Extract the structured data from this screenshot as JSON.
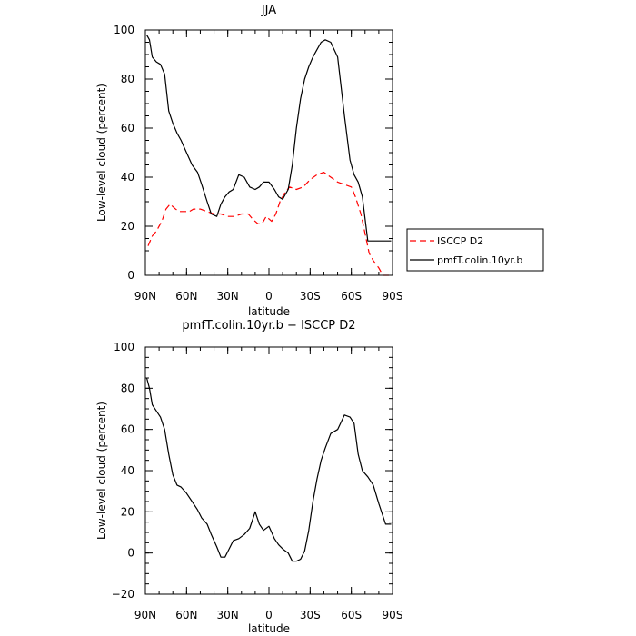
{
  "chart_data": [
    {
      "type": "line",
      "title": "JJA",
      "xlabel": "latitude",
      "ylabel": "Low-level cloud (percent)",
      "xlim": [
        90,
        -90
      ],
      "ylim": [
        0,
        100
      ],
      "x_ticks": [
        90,
        60,
        30,
        0,
        -30,
        -60,
        -90
      ],
      "x_tick_labels": [
        "90N",
        "60N",
        "30N",
        "0",
        "30S",
        "60S",
        "90S"
      ],
      "y_ticks": [
        0,
        20,
        40,
        60,
        80,
        100
      ],
      "y_tick_labels": [
        "0",
        "20",
        "40",
        "60",
        "80",
        "100"
      ],
      "legend_position": "right",
      "series": [
        {
          "name": "ISCCP D2",
          "color": "#ff0000",
          "style": "dashed",
          "x": [
            88,
            85,
            82,
            78,
            75,
            72,
            68,
            65,
            62,
            58,
            55,
            50,
            45,
            40,
            35,
            30,
            25,
            20,
            15,
            12,
            8,
            5,
            2,
            0,
            -2,
            -5,
            -8,
            -12,
            -15,
            -20,
            -25,
            -30,
            -35,
            -40,
            -45,
            -50,
            -55,
            -60,
            -63,
            -67,
            -70,
            -73,
            -76,
            -80,
            -83,
            -87,
            -89
          ],
          "values": [
            12,
            16,
            18,
            22,
            27,
            29,
            27,
            26,
            26,
            26,
            27,
            27,
            26,
            25,
            25,
            24,
            24,
            25,
            25,
            23,
            21,
            21,
            24,
            23,
            22,
            25,
            30,
            34,
            36,
            35,
            36,
            39,
            41,
            42,
            40,
            38,
            37,
            36,
            32,
            25,
            17,
            9,
            6,
            3,
            0,
            0,
            0
          ]
        },
        {
          "name": "pmfT.colin.10yr.b",
          "color": "#000000",
          "style": "solid",
          "x": [
            89,
            87,
            85,
            82,
            79,
            76,
            73,
            70,
            67,
            64,
            60,
            56,
            52,
            49,
            45,
            42,
            38,
            35,
            32,
            29,
            26,
            22,
            18,
            14,
            10,
            7,
            4,
            0,
            -4,
            -7,
            -10,
            -14,
            -17,
            -20,
            -23,
            -26,
            -29,
            -32,
            -35,
            -38,
            -41,
            -45,
            -50,
            -55,
            -59,
            -62,
            -65,
            -68,
            -72,
            -76,
            -80,
            -85,
            -89
          ],
          "values": [
            98,
            96,
            89,
            87,
            86,
            82,
            67,
            62,
            58,
            55,
            50,
            45,
            42,
            37,
            30,
            25,
            24,
            29,
            32,
            34,
            35,
            41,
            40,
            36,
            35,
            36,
            38,
            38,
            35,
            32,
            31,
            35,
            45,
            60,
            72,
            80,
            85,
            89,
            92,
            95,
            96,
            95,
            89,
            65,
            47,
            41,
            38,
            32,
            14,
            14,
            14,
            14,
            14
          ]
        }
      ]
    },
    {
      "type": "line",
      "title": "pmfT.colin.10yr.b − ISCCP D2",
      "xlabel": "latitude",
      "ylabel": "Low-level cloud (percent)",
      "xlim": [
        90,
        -90
      ],
      "ylim": [
        -20,
        100
      ],
      "x_ticks": [
        90,
        60,
        30,
        0,
        -30,
        -60,
        -90
      ],
      "x_tick_labels": [
        "90N",
        "60N",
        "30N",
        "0",
        "30S",
        "60S",
        "90S"
      ],
      "y_ticks": [
        -20,
        0,
        20,
        40,
        60,
        80,
        100
      ],
      "y_tick_labels": [
        "−20",
        "0",
        "20",
        "40",
        "60",
        "80",
        "100"
      ],
      "series": [
        {
          "color": "#000000",
          "style": "solid",
          "x": [
            89,
            87,
            85,
            82,
            79,
            76,
            73,
            70,
            67,
            64,
            60,
            56,
            52,
            49,
            45,
            42,
            38,
            35,
            32,
            29,
            26,
            22,
            18,
            14,
            10,
            7,
            4,
            0,
            -4,
            -7,
            -10,
            -14,
            -17,
            -20,
            -23,
            -26,
            -29,
            -32,
            -35,
            -38,
            -41,
            -45,
            -50,
            -55,
            -59,
            -62,
            -65,
            -68,
            -72,
            -76,
            -80,
            -85,
            -89
          ],
          "values": [
            85,
            80,
            72,
            69,
            66,
            60,
            48,
            38,
            33,
            32,
            29,
            25,
            21,
            17,
            14,
            9,
            3,
            -2,
            -2,
            2,
            6,
            7,
            9,
            12,
            20,
            14,
            11,
            13,
            7,
            4,
            2,
            0,
            -4,
            -4,
            -3,
            1,
            11,
            25,
            36,
            45,
            51,
            58,
            60,
            67,
            66,
            63,
            48,
            40,
            37,
            33,
            24,
            14,
            14
          ]
        }
      ]
    }
  ]
}
